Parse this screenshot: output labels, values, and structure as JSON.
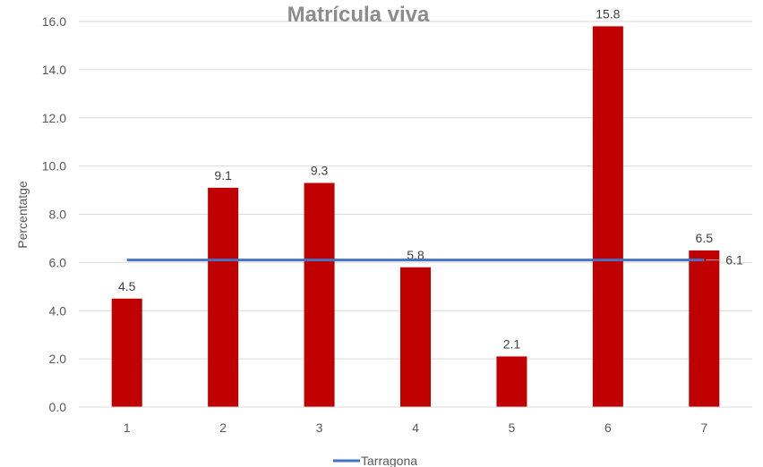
{
  "chart_data": {
    "type": "bar",
    "title": "Matrícula viva",
    "ylabel": "Percentatge",
    "xlabel": "",
    "categories": [
      "1",
      "2",
      "3",
      "4",
      "5",
      "6",
      "7"
    ],
    "series": [
      {
        "values": [
          4.5,
          9.1,
          9.3,
          5.8,
          2.1,
          15.8,
          6.5
        ],
        "color": "#c00000"
      }
    ],
    "reference_line": {
      "name": "Tarragona",
      "value": 6.1,
      "label": "6.1",
      "color": "#4472c4"
    },
    "y_tick_labels": [
      "0.0",
      "2.0",
      "4.0",
      "6.0",
      "8.0",
      "10.0",
      "12.0",
      "14.0",
      "16.0"
    ],
    "ylim": [
      0,
      16
    ],
    "grid": true,
    "legend_position": "bottom"
  }
}
